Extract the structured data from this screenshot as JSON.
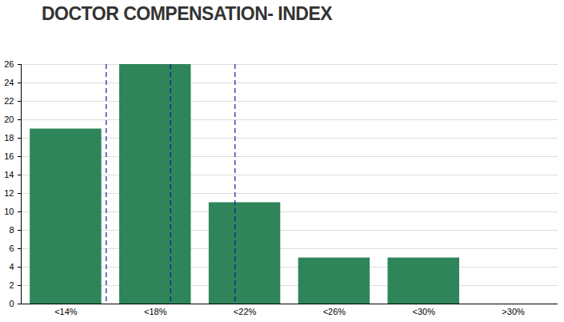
{
  "chart_data": {
    "type": "bar",
    "title": "DOCTOR COMPENSATION- INDEX",
    "categories": [
      "<14%",
      "<18%",
      "<22%",
      "<26%",
      "<30%",
      ">30%"
    ],
    "values": [
      19,
      26,
      11,
      5,
      5,
      0
    ],
    "color": "#2e8559",
    "reference_lines": [
      0.45,
      1.17,
      1.89
    ],
    "ylim": [
      0,
      26
    ],
    "yticks": [
      0,
      2,
      4,
      6,
      8,
      10,
      12,
      14,
      16,
      18,
      20,
      22,
      24,
      26
    ],
    "grid": true
  }
}
